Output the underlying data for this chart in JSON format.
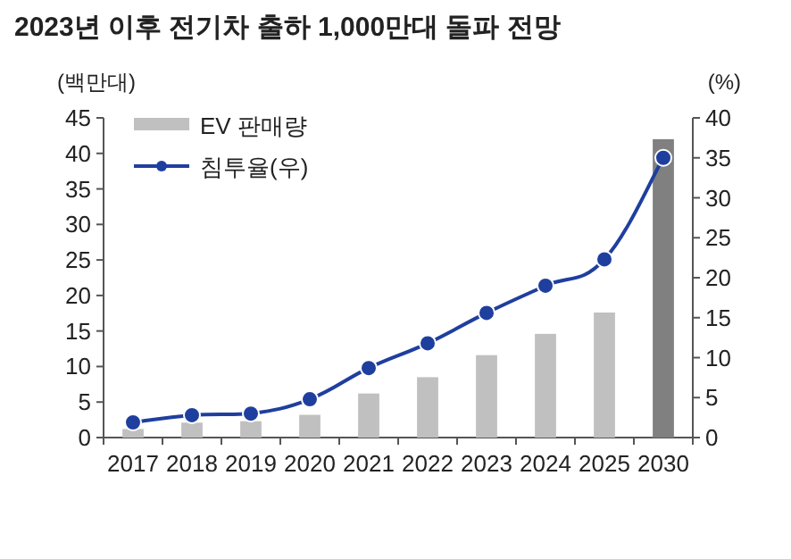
{
  "chart_data": {
    "type": "bar",
    "title": "2023년 이후 전기차 출하 1,000만대 돌파 전망",
    "categories": [
      "2017",
      "2018",
      "2019",
      "2020",
      "2021",
      "2022",
      "2023",
      "2024",
      "2025",
      "2030"
    ],
    "series": [
      {
        "name": "EV 판매량",
        "type": "bar",
        "colors": [
          "#c0c0c0",
          "#c0c0c0",
          "#c0c0c0",
          "#c0c0c0",
          "#c0c0c0",
          "#c0c0c0",
          "#c0c0c0",
          "#c0c0c0",
          "#c0c0c0",
          "#808080"
        ],
        "values": [
          1.2,
          2.1,
          2.3,
          3.2,
          6.2,
          8.5,
          11.6,
          14.6,
          17.6,
          42
        ]
      },
      {
        "name": "침투율(우)",
        "type": "line",
        "axis": "y2",
        "color": "#1f3f9f",
        "marker": "circle",
        "values": [
          1.9,
          2.8,
          3.0,
          4.8,
          8.7,
          11.8,
          15.6,
          19.0,
          22.3,
          35
        ]
      }
    ],
    "ylabel": "(백만대)",
    "y2label": "(%)",
    "ylim": [
      0,
      45
    ],
    "yticks": [
      0,
      5,
      10,
      15,
      20,
      25,
      30,
      35,
      40,
      45
    ],
    "y2lim": [
      0,
      40
    ],
    "y2ticks": [
      0,
      5,
      10,
      15,
      20,
      25,
      30,
      35,
      40
    ],
    "legend": "top left",
    "grid": false
  }
}
